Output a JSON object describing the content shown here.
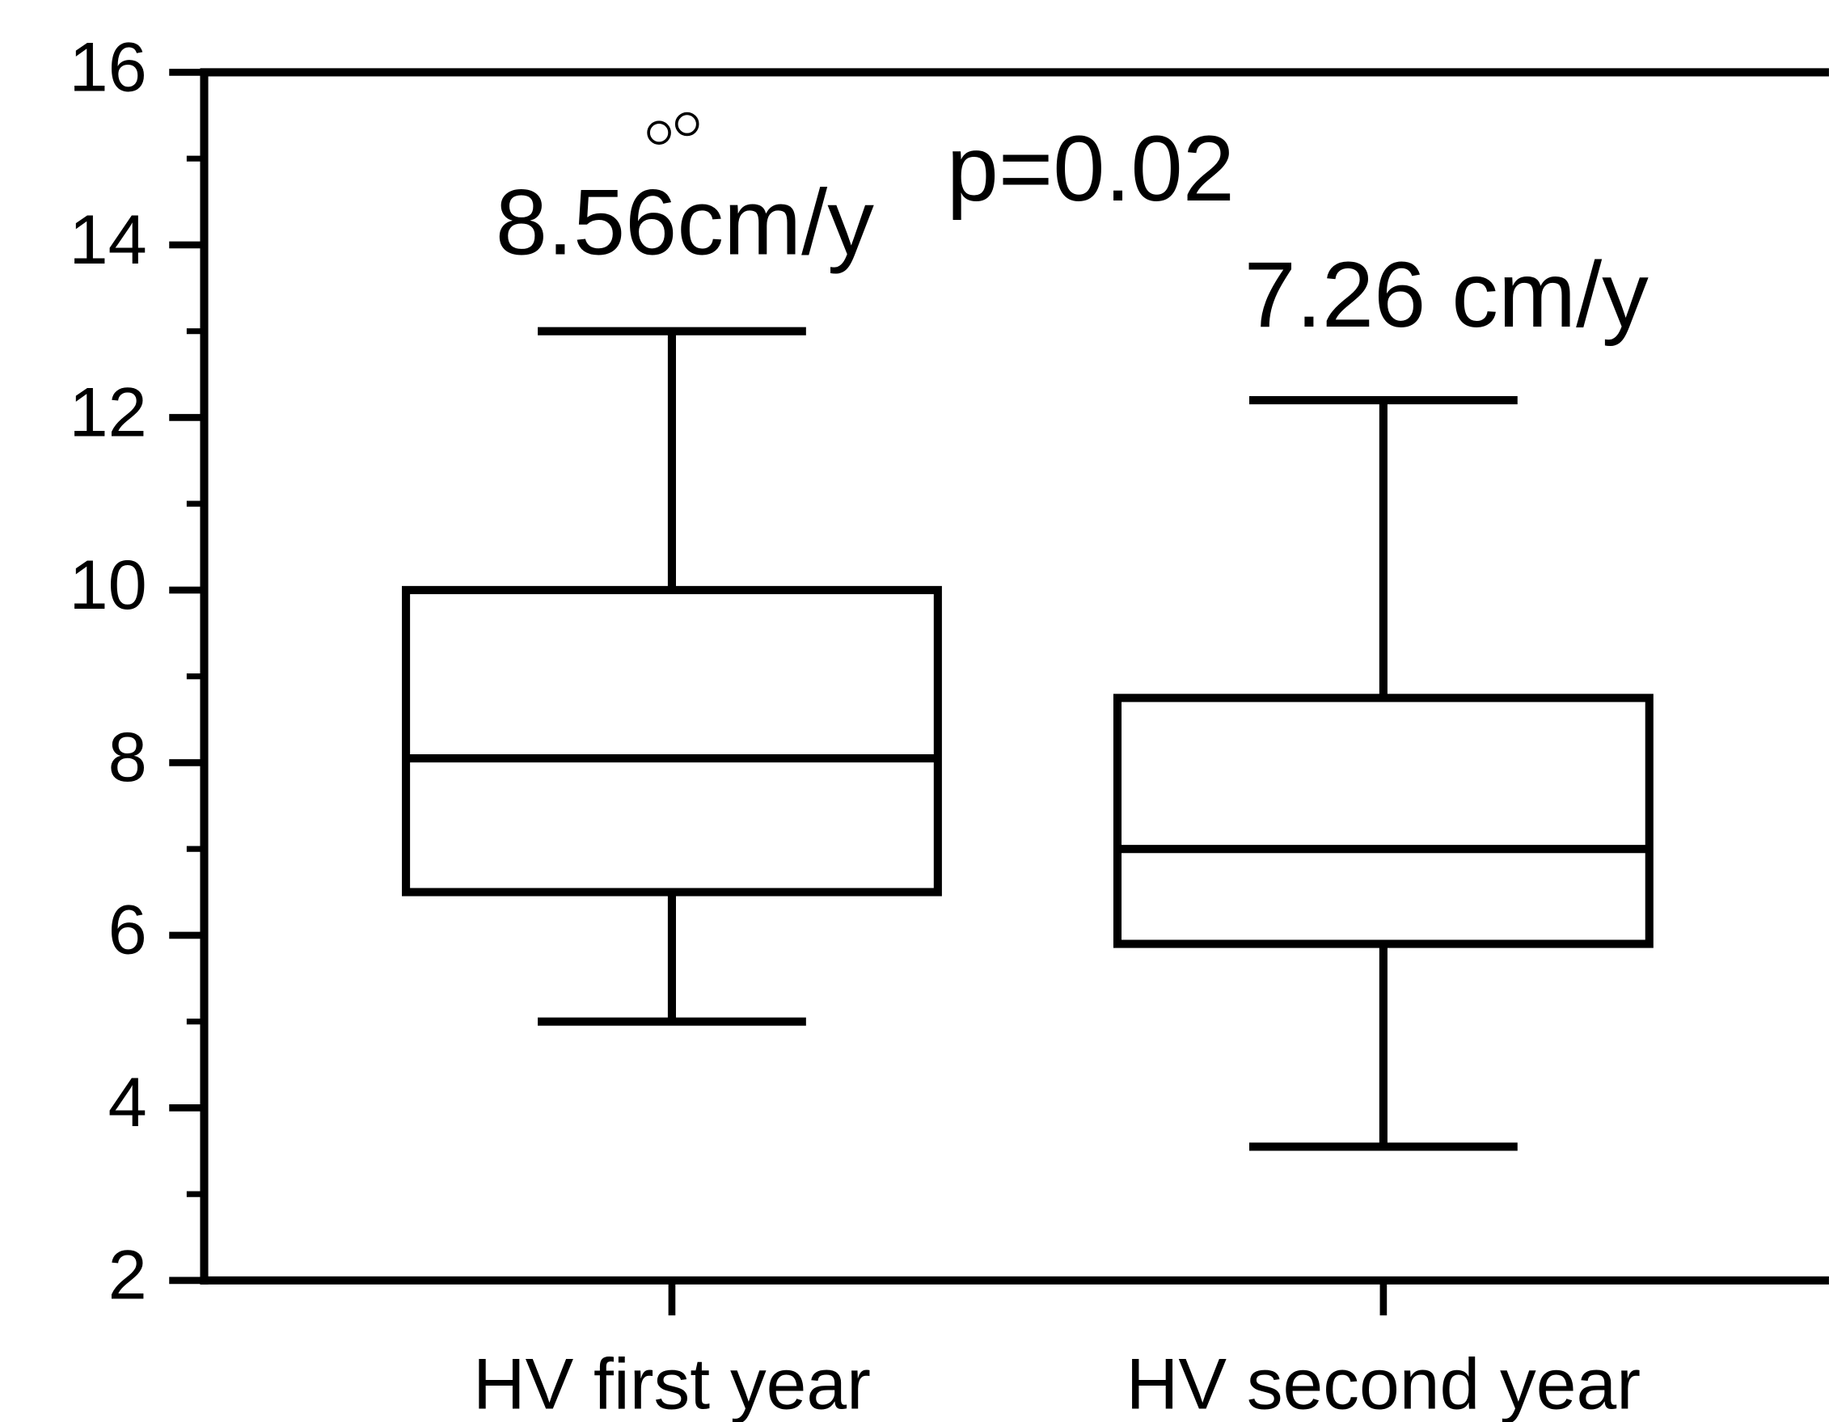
{
  "chart_data": {
    "type": "box",
    "categories": [
      "HV first year",
      "HV second year"
    ],
    "boxes": [
      {
        "whislo": 5.0,
        "q1": 6.5,
        "med": 8.05,
        "q3": 10.0,
        "whishi": 13.0,
        "fliers": [
          15.3,
          15.4
        ]
      },
      {
        "whislo": 3.55,
        "q1": 5.9,
        "med": 7.0,
        "q3": 8.75,
        "whishi": 12.2,
        "fliers": []
      }
    ],
    "annotations": [
      "8.56cm/y",
      "p=0.02",
      "7.26 cm/y"
    ],
    "ylim": [
      2,
      16
    ],
    "yticks": [
      2,
      4,
      6,
      8,
      10,
      12,
      14,
      16
    ],
    "color": "#000000"
  }
}
